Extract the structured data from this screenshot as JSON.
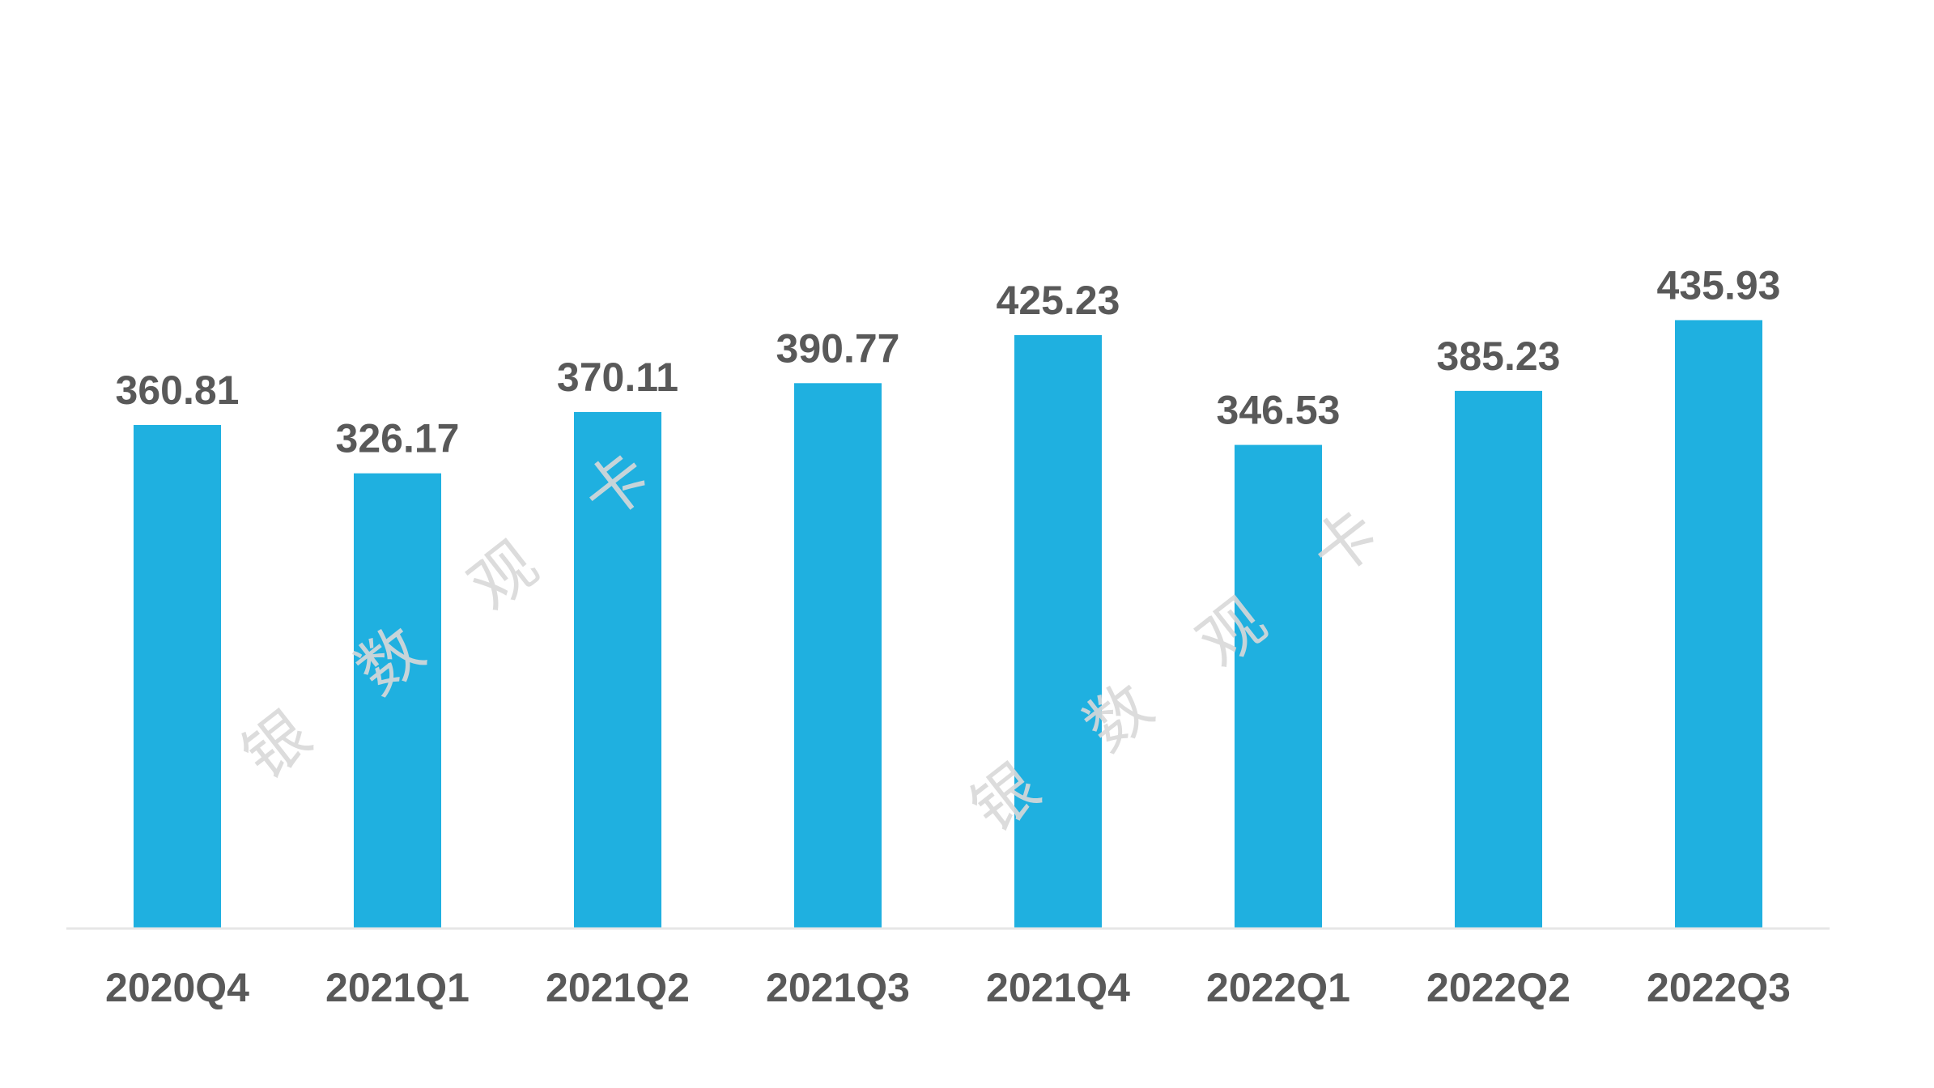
{
  "chart_data": {
    "type": "bar",
    "title": "",
    "xlabel": "",
    "ylabel": "",
    "categories": [
      "2020Q4",
      "2021Q1",
      "2021Q2",
      "2021Q3",
      "2021Q4",
      "2022Q1",
      "2022Q2",
      "2022Q3"
    ],
    "values": [
      360.81,
      326.17,
      370.11,
      390.77,
      425.23,
      346.53,
      385.23,
      435.93
    ],
    "value_labels": [
      "360.81",
      "326.17",
      "370.11",
      "390.77",
      "425.23",
      "346.53",
      "385.23",
      "435.93"
    ],
    "ylim": [
      0,
      600
    ],
    "grid": false,
    "legend": "none",
    "bar_color": "#1FB0E0",
    "axis_color": "#e6e6e6",
    "label_color": "#595959"
  },
  "watermarks": [
    {
      "chars": [
        "银",
        "数",
        "观",
        "卡"
      ]
    },
    {
      "chars": [
        "银",
        "数",
        "观",
        "卡"
      ]
    }
  ]
}
